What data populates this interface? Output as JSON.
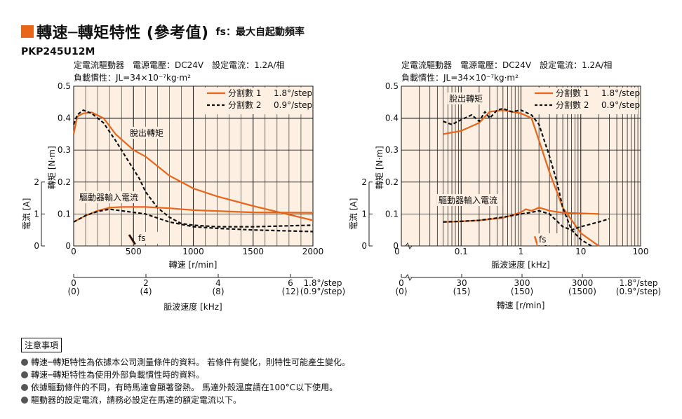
{
  "page": {
    "title": "轉速─轉矩特性 (參考值)",
    "subtitle": "fs：最大自起動頻率",
    "model": "PKP245U12M",
    "notes_heading": "注意事項",
    "notes": [
      "轉速─轉矩特性為依據本公司測量條件的資料。 若條件有變化，則特性可能產生變化。",
      "轉速─轉矩特性為使用外部負載慣性時的資料。",
      "依據驅動條件的不同，有時馬達會顯著發熱。 馬達外殼溫度請在100°C以下使用。",
      "驅動器的設定電流，請務必設定在馬達的額定電流以下。"
    ],
    "colors": {
      "accent": "#e8651a",
      "plot_bg": "#fdf0e3"
    }
  },
  "chart_data": [
    {
      "type": "line",
      "conditions_line1": "定電流驅動器　電源電壓：DC24V　設定電流：1.2A/相",
      "conditions_line2": "負載慣性：JL=34×10⁻⁷kg·m²",
      "xlabel": "轉速 [r/min]",
      "xlim": [
        0,
        2000
      ],
      "x_ticks": [
        "0",
        "500",
        "1000",
        "1500",
        "2000"
      ],
      "ylabel": "轉矩 [N·m]",
      "ylim": [
        0,
        0.5
      ],
      "y_ticks": [
        "0",
        "0.1",
        "0.2",
        "0.3",
        "0.4",
        "0.5"
      ],
      "y2label": "電流 [A]",
      "y2_ticks": [
        "0",
        "1",
        "2"
      ],
      "sub_axis_label": "脈波速度 [kHz]",
      "sub_axis_ticks": [
        {
          "top": "0",
          "bottom": "(0)"
        },
        {
          "top": "2",
          "bottom": "(4)"
        },
        {
          "top": "4",
          "bottom": "(8)"
        },
        {
          "top": "6",
          "bottom": "(12)"
        }
      ],
      "sub_axis_unit": [
        "1.8°/step",
        "(0.9°/step)"
      ],
      "grid": true,
      "legend_position": "top-right",
      "legend": [
        {
          "name": "分割數 1",
          "step": "1.8°/step",
          "style": "solid"
        },
        {
          "name": "分割數 2",
          "step": "0.9°/step",
          "style": "dashed"
        }
      ],
      "annotations": [
        "脫出轉矩",
        "驅動器輸入電流",
        "fs"
      ],
      "series": [
        {
          "group": "pullout",
          "style": "solid",
          "x": [
            0,
            30,
            80,
            150,
            250,
            350,
            500,
            600,
            700,
            800,
            1000,
            1200,
            1500,
            2000
          ],
          "y": [
            0.35,
            0.405,
            0.415,
            0.418,
            0.4,
            0.35,
            0.3,
            0.28,
            0.25,
            0.22,
            0.18,
            0.155,
            0.125,
            0.08
          ]
        },
        {
          "group": "pullout",
          "style": "dashed",
          "x": [
            0,
            30,
            80,
            150,
            250,
            350,
            450,
            550,
            600,
            700,
            800,
            900,
            1000,
            1200,
            1500,
            2000
          ],
          "y": [
            0.38,
            0.41,
            0.425,
            0.415,
            0.385,
            0.33,
            0.27,
            0.21,
            0.17,
            0.12,
            0.09,
            0.07,
            0.065,
            0.06,
            0.06,
            0.065
          ]
        },
        {
          "group": "current",
          "style": "solid",
          "x": [
            0,
            100,
            200,
            300,
            400,
            600,
            800,
            1000,
            1500,
            2000
          ],
          "y": [
            0.075,
            0.095,
            0.11,
            0.12,
            0.122,
            0.122,
            0.118,
            0.112,
            0.105,
            0.104
          ]
        },
        {
          "group": "current",
          "style": "dashed",
          "x": [
            0,
            100,
            200,
            300,
            400,
            600,
            800,
            1000,
            1200,
            1500,
            2000
          ],
          "y": [
            0.075,
            0.095,
            0.108,
            0.115,
            0.11,
            0.1,
            0.075,
            0.06,
            0.055,
            0.05,
            0.045
          ]
        },
        {
          "group": "fs",
          "style": "solid",
          "x": [
            460,
            510
          ],
          "y": [
            0.035,
            0.005
          ]
        },
        {
          "group": "fs",
          "style": "dashed",
          "x": [
            465,
            515
          ],
          "y": [
            0.035,
            0.005
          ]
        }
      ]
    },
    {
      "type": "line",
      "conditions_line1": "定電流驅動器　電源電壓：DC24V　設定電流：1.2A/相",
      "conditions_line2": "負載慣性：JL=34×10⁻⁷kg·m²",
      "xlabel": "脈波速度 [kHz]",
      "xscale": "log",
      "xlim": [
        0.01,
        100
      ],
      "x_ticks": [
        "0",
        "0.1",
        "1",
        "10",
        "100"
      ],
      "ylabel": "轉矩 [N·m]",
      "ylim": [
        0,
        0.5
      ],
      "y_ticks": [
        "0",
        "0.1",
        "0.2",
        "0.3",
        "0.4",
        "0.5"
      ],
      "y2label": "電流 [A]",
      "y2_ticks": [
        "0",
        "1",
        "2"
      ],
      "sub_axis_label": "轉速 [r/min]",
      "sub_axis_ticks": [
        {
          "top": "0",
          "bottom": "(0)"
        },
        {
          "top": "30",
          "bottom": "(15)"
        },
        {
          "top": "300",
          "bottom": "(150)"
        },
        {
          "top": "3000",
          "bottom": "(1500)"
        }
      ],
      "sub_axis_unit": [
        "1.8°/step",
        "(0.9°/step)"
      ],
      "grid": true,
      "legend_position": "top-right",
      "legend": [
        {
          "name": "分割數 1",
          "step": "1.8°/step",
          "style": "solid"
        },
        {
          "name": "分割數 2",
          "step": "0.9°/step",
          "style": "dashed"
        }
      ],
      "annotations": [
        "脫出轉矩",
        "驅動器輸入電流",
        "fs"
      ],
      "series": [
        {
          "group": "pullout",
          "style": "solid",
          "x": [
            0.05,
            0.1,
            0.2,
            0.3,
            0.5,
            0.7,
            1,
            1.5,
            2,
            3,
            5,
            10,
            20
          ],
          "y": [
            0.35,
            0.36,
            0.385,
            0.42,
            0.425,
            0.42,
            0.415,
            0.4,
            0.33,
            0.23,
            0.12,
            0.04,
            0.0
          ]
        },
        {
          "group": "pullout",
          "style": "dashed",
          "x": [
            0.05,
            0.07,
            0.1,
            0.15,
            0.2,
            0.25,
            0.3,
            0.4,
            0.5,
            0.7,
            1,
            1.5,
            2,
            3,
            4,
            5,
            7,
            10,
            15
          ],
          "y": [
            0.39,
            0.38,
            0.395,
            0.41,
            0.39,
            0.42,
            0.4,
            0.425,
            0.43,
            0.42,
            0.425,
            0.41,
            0.38,
            0.28,
            0.2,
            0.12,
            0.05,
            0.02,
            0.0
          ]
        },
        {
          "group": "current",
          "style": "solid",
          "x": [
            0.05,
            0.1,
            0.2,
            0.5,
            1,
            1.2,
            1.5,
            2,
            2.5,
            3,
            5,
            10,
            20
          ],
          "y": [
            0.075,
            0.077,
            0.08,
            0.088,
            0.105,
            0.115,
            0.11,
            0.12,
            0.115,
            0.11,
            0.104,
            0.102,
            0.1
          ]
        },
        {
          "group": "current",
          "style": "dashed",
          "x": [
            0.05,
            0.1,
            0.2,
            0.5,
            1,
            1.5,
            2,
            3,
            5,
            7,
            10,
            20,
            30
          ],
          "y": [
            0.075,
            0.077,
            0.08,
            0.09,
            0.1,
            0.105,
            0.11,
            0.1,
            0.06,
            0.05,
            0.06,
            0.075,
            0.085
          ]
        },
        {
          "group": "fs",
          "style": "solid",
          "x": [
            1.7,
            1.9
          ],
          "y": [
            0.03,
            0.0
          ]
        },
        {
          "group": "fs",
          "style": "dashed",
          "x": [
            2.3,
            2.6
          ],
          "y": [
            0.03,
            0.0
          ]
        }
      ]
    }
  ]
}
